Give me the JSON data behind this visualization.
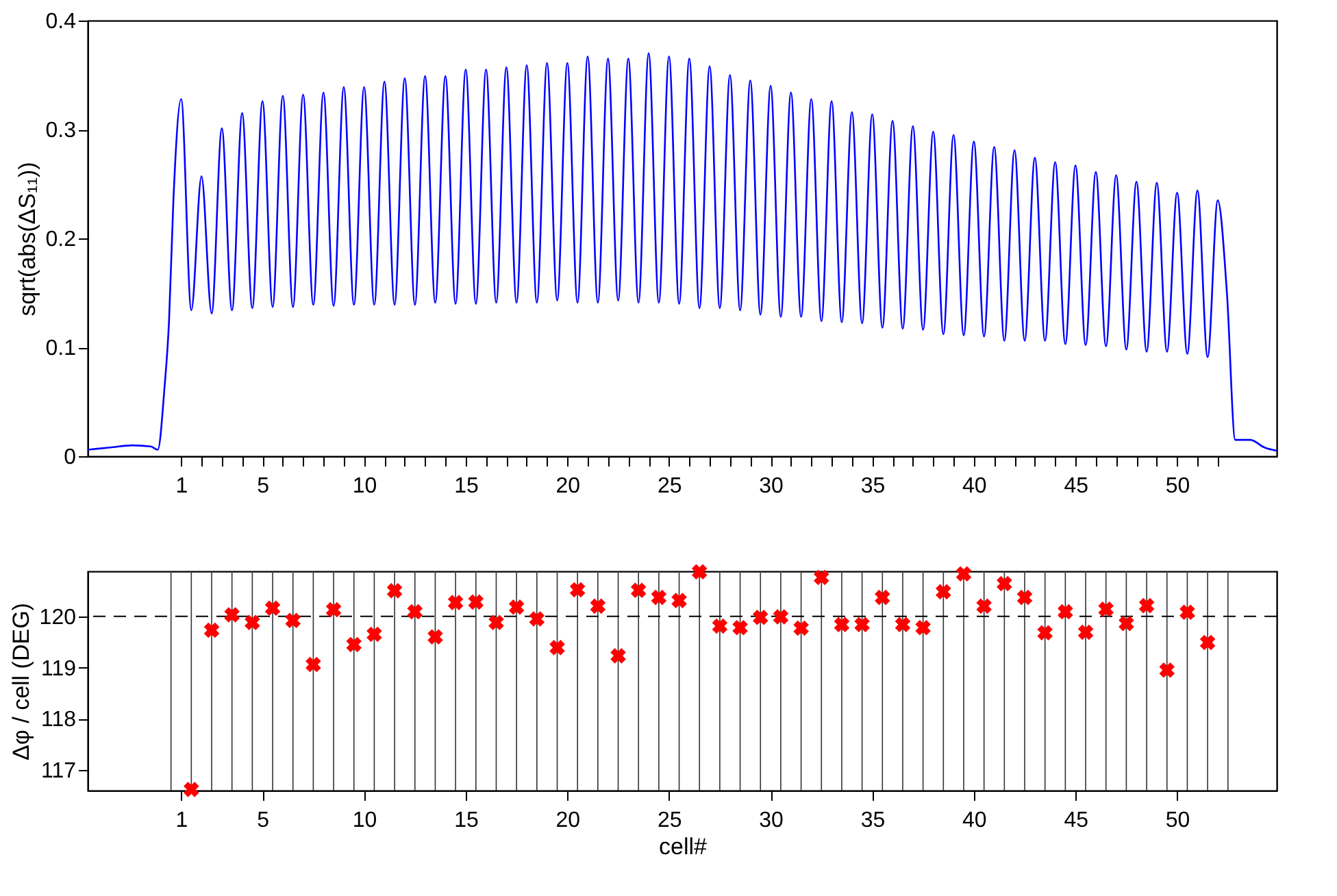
{
  "chart_data": [
    {
      "type": "line",
      "ylabel": "sqrt(abs(ΔS₁₁))",
      "color": "#0000ff",
      "line_style": "solid",
      "grid": false,
      "x": [
        -3.6,
        -2.5,
        -1.4,
        -0.5,
        -0.15,
        0.18,
        0.4,
        0.62,
        1,
        1.5,
        2,
        2.5,
        3,
        3.5,
        4,
        4.5,
        5,
        5.5,
        6,
        6.5,
        7,
        7.5,
        8,
        8.5,
        9,
        9.5,
        10,
        10.5,
        11,
        11.5,
        12,
        12.5,
        13,
        13.5,
        14,
        14.5,
        15,
        15.5,
        16,
        16.5,
        17,
        17.5,
        18,
        18.5,
        19,
        19.5,
        20,
        20.5,
        21,
        21.5,
        22,
        22.5,
        23,
        23.5,
        24,
        24.5,
        25,
        25.5,
        26,
        26.5,
        27,
        27.5,
        28,
        28.5,
        29,
        29.5,
        30,
        30.5,
        31,
        31.5,
        32,
        32.5,
        33,
        33.5,
        34,
        34.5,
        35,
        35.5,
        36,
        36.5,
        37,
        37.5,
        38,
        38.5,
        39,
        39.5,
        40,
        40.5,
        41,
        41.5,
        42,
        42.5,
        43,
        43.5,
        44,
        44.5,
        45,
        45.5,
        46,
        46.5,
        47,
        47.5,
        48,
        48.5,
        49,
        49.5,
        50,
        50.5,
        51,
        51.5,
        52,
        52.45,
        52.86,
        53.6,
        54.3,
        54.9
      ],
      "values": [
        0.006,
        0.008,
        0.01,
        0.009,
        0.006,
        0.063,
        0.123,
        0.236,
        0.328,
        0.134,
        0.257,
        0.131,
        0.301,
        0.134,
        0.315,
        0.136,
        0.326,
        0.137,
        0.331,
        0.137,
        0.332,
        0.139,
        0.334,
        0.138,
        0.339,
        0.139,
        0.339,
        0.139,
        0.344,
        0.139,
        0.347,
        0.139,
        0.349,
        0.141,
        0.349,
        0.14,
        0.355,
        0.14,
        0.355,
        0.141,
        0.357,
        0.141,
        0.359,
        0.141,
        0.361,
        0.143,
        0.361,
        0.141,
        0.367,
        0.141,
        0.365,
        0.143,
        0.365,
        0.141,
        0.37,
        0.141,
        0.367,
        0.14,
        0.365,
        0.136,
        0.358,
        0.136,
        0.35,
        0.134,
        0.345,
        0.13,
        0.34,
        0.128,
        0.334,
        0.128,
        0.328,
        0.124,
        0.326,
        0.123,
        0.316,
        0.122,
        0.314,
        0.118,
        0.308,
        0.117,
        0.303,
        0.116,
        0.298,
        0.112,
        0.295,
        0.111,
        0.289,
        0.11,
        0.284,
        0.106,
        0.281,
        0.106,
        0.274,
        0.106,
        0.27,
        0.103,
        0.267,
        0.102,
        0.261,
        0.101,
        0.258,
        0.098,
        0.252,
        0.096,
        0.251,
        0.096,
        0.242,
        0.094,
        0.244,
        0.091,
        0.235,
        0.15,
        0.015,
        0.015,
        0.008,
        0.005
      ],
      "xlim": [
        -3.6,
        54.9
      ],
      "xticks": [
        1,
        {
          "value": 2,
          "label": null
        },
        {
          "value": 3,
          "label": null
        },
        {
          "value": 4,
          "label": null
        },
        5,
        {
          "value": 6,
          "label": null
        },
        {
          "value": 7,
          "label": null
        },
        {
          "value": 8,
          "label": null
        },
        {
          "value": 9,
          "label": null
        },
        10,
        {
          "value": 11,
          "label": null
        },
        {
          "value": 12,
          "label": null
        },
        {
          "value": 13,
          "label": null
        },
        {
          "value": 14,
          "label": null
        },
        15,
        {
          "value": 16,
          "label": null
        },
        {
          "value": 17,
          "label": null
        },
        {
          "value": 18,
          "label": null
        },
        {
          "value": 19,
          "label": null
        },
        20,
        {
          "value": 21,
          "label": null
        },
        {
          "value": 22,
          "label": null
        },
        {
          "value": 23,
          "label": null
        },
        {
          "value": 24,
          "label": null
        },
        25,
        {
          "value": 26,
          "label": null
        },
        {
          "value": 27,
          "label": null
        },
        {
          "value": 28,
          "label": null
        },
        {
          "value": 29,
          "label": null
        },
        30,
        {
          "value": 31,
          "label": null
        },
        {
          "value": 32,
          "label": null
        },
        {
          "value": 33,
          "label": null
        },
        {
          "value": 34,
          "label": null
        },
        35,
        {
          "value": 36,
          "label": null
        },
        {
          "value": 37,
          "label": null
        },
        {
          "value": 38,
          "label": null
        },
        {
          "value": 39,
          "label": null
        },
        40,
        {
          "value": 41,
          "label": null
        },
        {
          "value": 42,
          "label": null
        },
        {
          "value": 43,
          "label": null
        },
        {
          "value": 44,
          "label": null
        },
        45,
        {
          "value": 46,
          "label": null
        },
        {
          "value": 47,
          "label": null
        },
        {
          "value": 48,
          "label": null
        },
        {
          "value": 49,
          "label": null
        },
        50,
        {
          "value": 51,
          "label": null
        },
        {
          "value": 52,
          "label": null
        }
      ],
      "ylim": [
        0,
        0.4
      ],
      "yticks": [
        0,
        0.1,
        0.2,
        0.3,
        0.4
      ]
    },
    {
      "type": "scatter",
      "xlabel": "cell#",
      "ylabel": "Δφ / cell (DEG)",
      "color": "#ff0000",
      "marker": "cross",
      "grid": false,
      "x": [
        1.5,
        2.5,
        3.5,
        4.5,
        5.5,
        6.5,
        7.5,
        8.5,
        9.5,
        10.5,
        11.5,
        12.5,
        13.5,
        14.5,
        15.5,
        16.5,
        17.5,
        18.5,
        19.5,
        20.5,
        21.5,
        22.5,
        23.5,
        24.5,
        25.5,
        26.5,
        27.5,
        28.5,
        29.5,
        30.5,
        31.5,
        32.5,
        33.5,
        34.5,
        35.5,
        36.5,
        37.5,
        38.5,
        39.5,
        40.5,
        41.5,
        42.5,
        43.5,
        44.5,
        45.5,
        46.5,
        47.5,
        48.5,
        49.5,
        50.5,
        51.5
      ],
      "values": [
        116.62,
        119.73,
        120.03,
        119.88,
        120.16,
        119.92,
        119.06,
        120.13,
        119.45,
        119.65,
        120.5,
        120.09,
        119.6,
        120.27,
        120.28,
        119.88,
        120.18,
        119.95,
        119.39,
        120.52,
        120.2,
        119.23,
        120.51,
        120.37,
        120.31,
        120.87,
        119.81,
        119.78,
        119.98,
        119.99,
        119.77,
        120.76,
        119.84,
        119.84,
        120.37,
        119.84,
        119.78,
        120.48,
        120.83,
        120.2,
        120.64,
        120.37,
        119.68,
        120.09,
        119.69,
        120.14,
        119.86,
        120.21,
        118.95,
        120.08,
        119.49
      ],
      "xlim": [
        -3.6,
        54.9
      ],
      "xticks": [
        1,
        5,
        10,
        15,
        20,
        25,
        30,
        35,
        40,
        45,
        50
      ],
      "ylim": [
        116.6,
        120.88
      ],
      "yticks": [
        117,
        118,
        119,
        120
      ],
      "ref_lines": [
        {
          "axis": "y",
          "value": 120,
          "line_style": "dashed"
        },
        {
          "axis": "x",
          "value": 0.5
        },
        {
          "axis": "x",
          "value": 1.5
        },
        {
          "axis": "x",
          "value": 2.5
        },
        {
          "axis": "x",
          "value": 3.5
        },
        {
          "axis": "x",
          "value": 4.5
        },
        {
          "axis": "x",
          "value": 5.5
        },
        {
          "axis": "x",
          "value": 6.5
        },
        {
          "axis": "x",
          "value": 7.5
        },
        {
          "axis": "x",
          "value": 8.5
        },
        {
          "axis": "x",
          "value": 9.5
        },
        {
          "axis": "x",
          "value": 10.5
        },
        {
          "axis": "x",
          "value": 11.5
        },
        {
          "axis": "x",
          "value": 12.5
        },
        {
          "axis": "x",
          "value": 13.5
        },
        {
          "axis": "x",
          "value": 14.5
        },
        {
          "axis": "x",
          "value": 15.5
        },
        {
          "axis": "x",
          "value": 16.5
        },
        {
          "axis": "x",
          "value": 17.5
        },
        {
          "axis": "x",
          "value": 18.5
        },
        {
          "axis": "x",
          "value": 19.5
        },
        {
          "axis": "x",
          "value": 20.5
        },
        {
          "axis": "x",
          "value": 21.5
        },
        {
          "axis": "x",
          "value": 22.5
        },
        {
          "axis": "x",
          "value": 23.5
        },
        {
          "axis": "x",
          "value": 24.5
        },
        {
          "axis": "x",
          "value": 25.5
        },
        {
          "axis": "x",
          "value": 26.5
        },
        {
          "axis": "x",
          "value": 27.5
        },
        {
          "axis": "x",
          "value": 28.5
        },
        {
          "axis": "x",
          "value": 29.5
        },
        {
          "axis": "x",
          "value": 30.5
        },
        {
          "axis": "x",
          "value": 31.5
        },
        {
          "axis": "x",
          "value": 32.5
        },
        {
          "axis": "x",
          "value": 33.5
        },
        {
          "axis": "x",
          "value": 34.5
        },
        {
          "axis": "x",
          "value": 35.5
        },
        {
          "axis": "x",
          "value": 36.5
        },
        {
          "axis": "x",
          "value": 37.5
        },
        {
          "axis": "x",
          "value": 38.5
        },
        {
          "axis": "x",
          "value": 39.5
        },
        {
          "axis": "x",
          "value": 40.5
        },
        {
          "axis": "x",
          "value": 41.5
        },
        {
          "axis": "x",
          "value": 42.5
        },
        {
          "axis": "x",
          "value": 43.5
        },
        {
          "axis": "x",
          "value": 44.5
        },
        {
          "axis": "x",
          "value": 45.5
        },
        {
          "axis": "x",
          "value": 46.5
        },
        {
          "axis": "x",
          "value": 47.5
        },
        {
          "axis": "x",
          "value": 48.5
        },
        {
          "axis": "x",
          "value": 49.5
        },
        {
          "axis": "x",
          "value": 50.5
        },
        {
          "axis": "x",
          "value": 51.5
        },
        {
          "axis": "x",
          "value": 52.5
        }
      ]
    }
  ]
}
